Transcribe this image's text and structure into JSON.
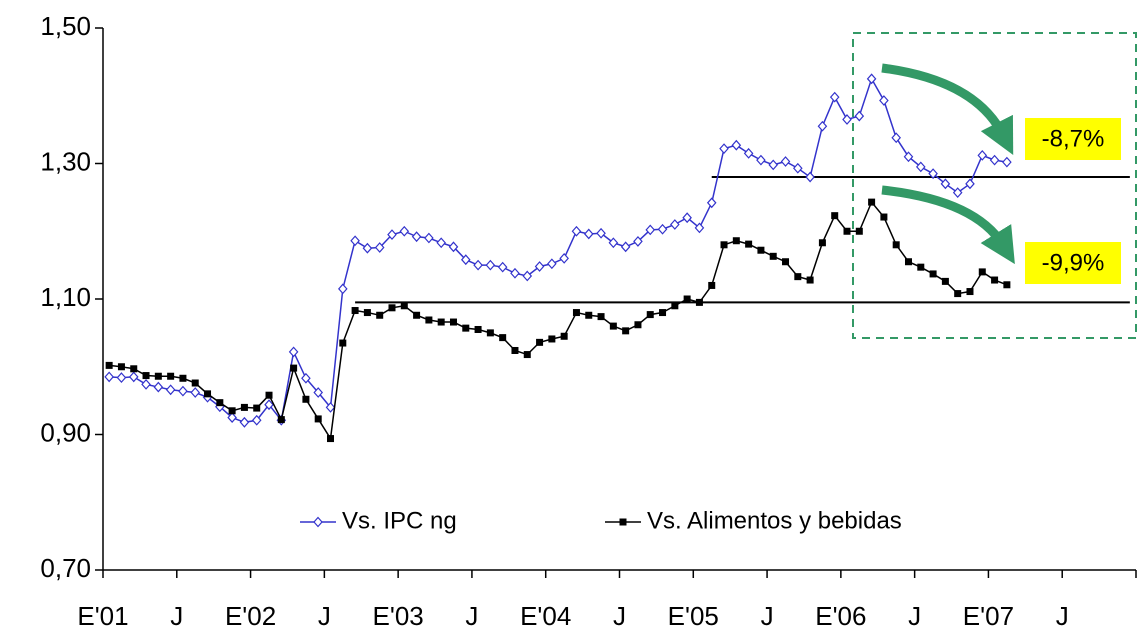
{
  "chart_data": {
    "type": "line",
    "categories": [
      "E'01",
      null,
      null,
      null,
      null,
      null,
      "J",
      null,
      null,
      null,
      null,
      null,
      "E'02",
      null,
      null,
      null,
      null,
      null,
      "J",
      null,
      null,
      null,
      null,
      null,
      "E'03",
      null,
      null,
      null,
      null,
      null,
      "J",
      null,
      null,
      null,
      null,
      null,
      "E'04",
      null,
      null,
      null,
      null,
      null,
      "J",
      null,
      null,
      null,
      null,
      null,
      "E'05",
      null,
      null,
      null,
      null,
      null,
      "J",
      null,
      null,
      null,
      null,
      null,
      "E'06",
      null,
      null,
      null,
      null,
      null,
      "J",
      null,
      null,
      null,
      null,
      null,
      "E'07",
      null,
      null,
      null,
      null,
      null,
      "J",
      null,
      null,
      null,
      null,
      null
    ],
    "series": [
      {
        "name": "Vs. IPC ng",
        "color": "#3333cc",
        "marker": "diamond",
        "values": [
          0.985,
          0.984,
          0.985,
          0.974,
          0.97,
          0.966,
          0.964,
          0.962,
          0.955,
          0.941,
          0.925,
          0.918,
          0.921,
          0.944,
          0.921,
          1.022,
          0.983,
          0.962,
          0.94,
          1.115,
          1.186,
          1.175,
          1.176,
          1.195,
          1.2,
          1.192,
          1.19,
          1.183,
          1.177,
          1.158,
          1.15,
          1.15,
          1.147,
          1.138,
          1.134,
          1.148,
          1.152,
          1.16,
          1.2,
          1.196,
          1.197,
          1.183,
          1.177,
          1.185,
          1.202,
          1.203,
          1.21,
          1.22,
          1.205,
          1.242,
          1.322,
          1.327,
          1.315,
          1.305,
          1.298,
          1.303,
          1.293,
          1.28,
          1.355,
          1.398,
          1.365,
          1.37,
          1.425,
          1.393,
          1.338,
          1.31,
          1.295,
          1.285,
          1.27,
          1.257,
          1.27,
          1.312,
          1.305,
          1.302,
          null,
          null,
          null,
          null,
          null,
          null,
          null,
          null,
          null,
          null
        ]
      },
      {
        "name": "Vs. Alimentos y bebidas",
        "color": "#000000",
        "marker": "square",
        "values": [
          1.002,
          1.0,
          0.997,
          0.987,
          0.986,
          0.986,
          0.983,
          0.976,
          0.96,
          0.947,
          0.935,
          0.94,
          0.939,
          0.958,
          0.922,
          0.998,
          0.952,
          0.923,
          0.894,
          1.035,
          1.083,
          1.08,
          1.076,
          1.087,
          1.09,
          1.076,
          1.069,
          1.066,
          1.066,
          1.057,
          1.055,
          1.05,
          1.043,
          1.024,
          1.018,
          1.036,
          1.041,
          1.045,
          1.08,
          1.076,
          1.074,
          1.06,
          1.053,
          1.062,
          1.077,
          1.08,
          1.09,
          1.1,
          1.095,
          1.12,
          1.18,
          1.186,
          1.181,
          1.172,
          1.163,
          1.155,
          1.133,
          1.128,
          1.183,
          1.223,
          1.2,
          1.2,
          1.243,
          1.221,
          1.18,
          1.155,
          1.147,
          1.137,
          1.126,
          1.108,
          1.111,
          1.14,
          1.128,
          1.121,
          null,
          null,
          null,
          null,
          null,
          null,
          null,
          null,
          null,
          null
        ]
      }
    ],
    "ylim": [
      0.7,
      1.5
    ],
    "yticks": [
      {
        "value": 0.7,
        "label": "0,70"
      },
      {
        "value": 0.9,
        "label": "0,90"
      },
      {
        "value": 1.1,
        "label": "1,10"
      },
      {
        "value": 1.3,
        "label": "1,30"
      },
      {
        "value": 1.5,
        "label": "1,50"
      }
    ],
    "grid": false,
    "legend": "bottom",
    "reference_lines": [
      {
        "value": 1.28,
        "color": "#000000"
      },
      {
        "value": 1.095,
        "color": "#000000"
      }
    ],
    "annotations": [
      {
        "text": "-8,7%",
        "color": "#ffff00"
      },
      {
        "text": "-9,9%",
        "color": "#ffff00"
      }
    ]
  }
}
